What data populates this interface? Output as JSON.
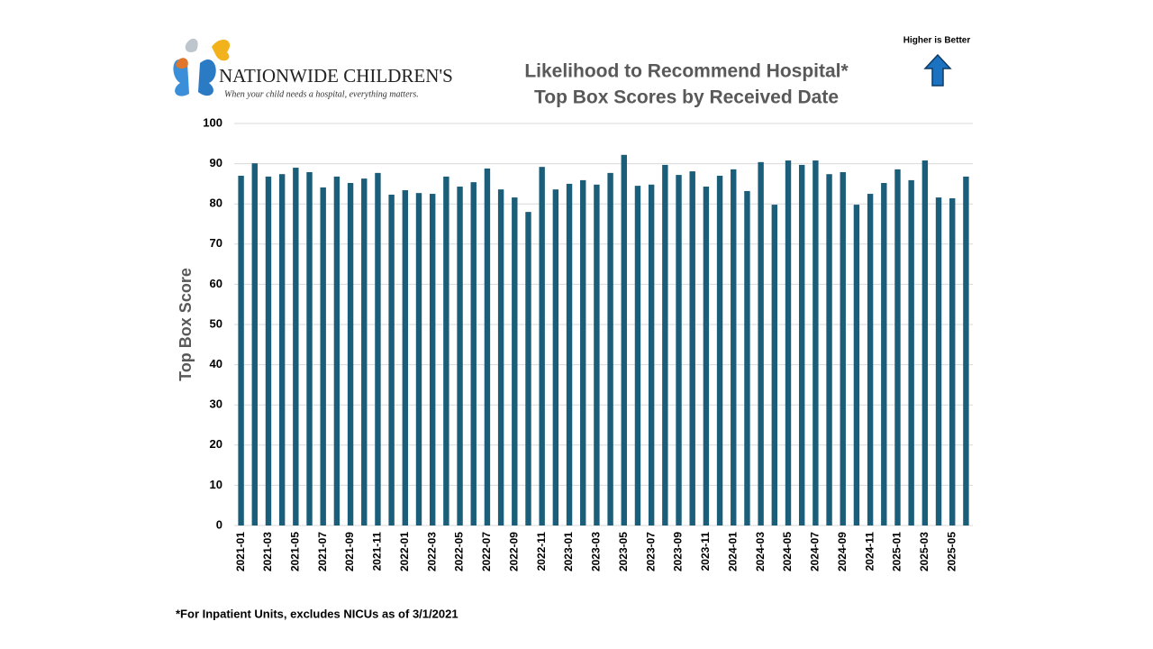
{
  "chart_data": {
    "type": "bar",
    "title": "Likelihood to Recommend Hospital*",
    "subtitle": "Top Box Scores by Received Date",
    "y_label": "Top Box Score",
    "note": "Higher is Better",
    "footnote": "*For Inpatient Units, excludes NICUs as of 3/1/2021",
    "logo": {
      "name": "NATIONWIDE CHILDREN'S",
      "tagline": "When your child needs a hospital, everything matters."
    },
    "categories": [
      "2021-01",
      null,
      "2021-03",
      null,
      "2021-05",
      null,
      "2021-07",
      null,
      "2021-09",
      null,
      "2021-11",
      null,
      "2022-01",
      null,
      "2022-03",
      null,
      "2022-05",
      null,
      "2022-07",
      null,
      "2022-09",
      null,
      "2022-11",
      null,
      "2023-01",
      null,
      "2023-03",
      null,
      "2023-05",
      null,
      "2023-07",
      null,
      "2023-09",
      null,
      "2023-11",
      null,
      "2024-01",
      null,
      "2024-03",
      null,
      "2024-05",
      null,
      "2024-07",
      null,
      "2024-09",
      null,
      "2024-11",
      null,
      "2025-01",
      null,
      "2025-03",
      null,
      "2025-05",
      null
    ],
    "values": [
      87.0,
      90.1,
      86.8,
      87.4,
      89.0,
      87.9,
      84.1,
      86.8,
      85.2,
      86.3,
      87.7,
      82.3,
      83.4,
      82.7,
      82.5,
      86.8,
      84.3,
      85.4,
      88.8,
      83.6,
      81.6,
      78.0,
      89.2,
      83.6,
      85.0,
      85.9,
      84.8,
      87.7,
      92.2,
      84.5,
      84.8,
      89.7,
      87.2,
      88.1,
      84.3,
      87.0,
      88.6,
      83.2,
      90.4,
      79.8,
      90.8,
      89.7,
      90.8,
      87.4,
      87.9,
      79.8,
      82.5,
      85.2,
      88.6,
      85.9,
      90.8,
      81.6,
      81.4,
      86.8
    ],
    "color": "#1b5e7a",
    "ylim": [
      0,
      100
    ],
    "yticks": [
      0,
      10,
      20,
      30,
      40,
      50,
      60,
      70,
      80,
      90,
      100
    ],
    "grid": true
  }
}
